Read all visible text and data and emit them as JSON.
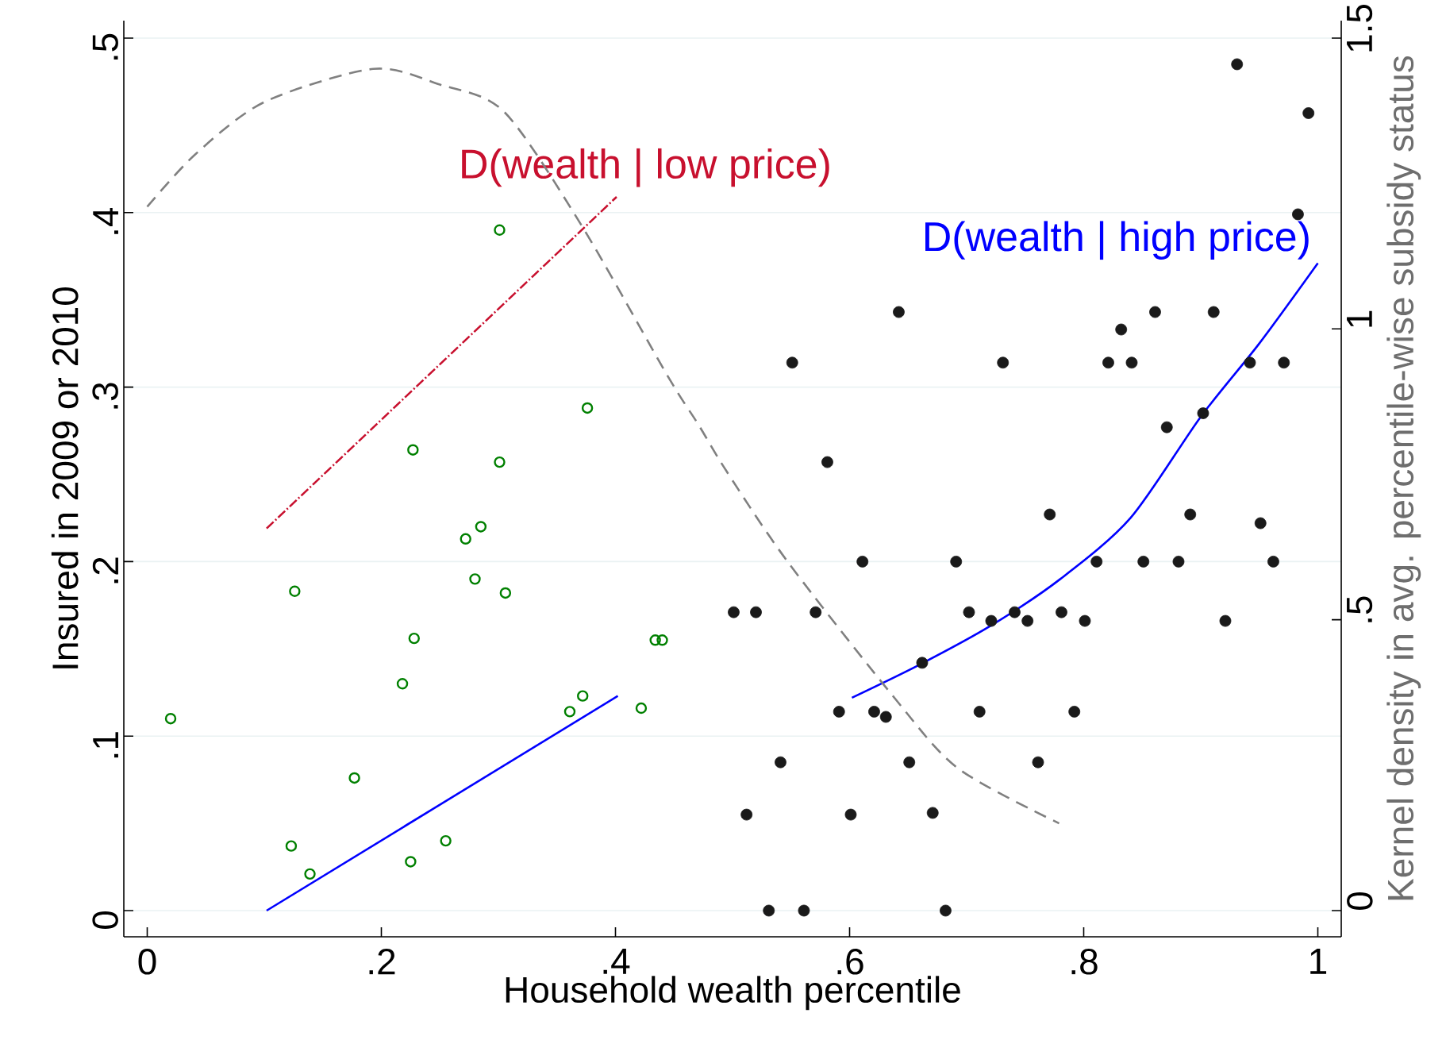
{
  "chart_data": {
    "type": "scatter",
    "xlabel": "Household wealth percentile",
    "ylabel": "Insured in 2009 or 2010",
    "y2label": "Kernel density in avg. percentile-wise subsidy status",
    "xlim": [
      -0.02,
      1.02
    ],
    "ylim": [
      -0.015,
      0.51
    ],
    "y2lim": [
      -0.045,
      1.53
    ],
    "xticks": [
      0,
      {
        "value": 0.2,
        "label": ".2"
      },
      {
        "value": 0.4,
        "label": ".4"
      },
      {
        "value": 0.6,
        "label": ".6"
      },
      {
        "value": 0.8,
        "label": ".8"
      },
      1
    ],
    "yticks": [
      0,
      {
        "value": 0.1,
        "label": ".1"
      },
      {
        "value": 0.2,
        "label": ".2"
      },
      {
        "value": 0.3,
        "label": ".3"
      },
      {
        "value": 0.4,
        "label": ".4"
      },
      {
        "value": 0.5,
        "label": ".5"
      }
    ],
    "y2ticks": [
      0,
      {
        "value": 0.5,
        "label": ".5"
      },
      1,
      1.5
    ],
    "grid": "y",
    "series": [
      {
        "type": "scatter",
        "marker": "circle",
        "color": "#008000",
        "x": [
          0.02,
          0.126,
          0.301,
          0.376,
          0.227,
          0.301,
          0.285,
          0.272,
          0.28,
          0.306,
          0.228,
          0.218,
          0.434,
          0.44,
          0.372,
          0.361,
          0.422,
          0.177,
          0.123,
          0.139,
          0.225,
          0.255
        ],
        "values": [
          0.11,
          0.183,
          0.39,
          0.288,
          0.264,
          0.257,
          0.22,
          0.213,
          0.19,
          0.182,
          0.156,
          0.13,
          0.155,
          0.155,
          0.123,
          0.114,
          0.116,
          0.076,
          0.037,
          0.021,
          0.028,
          0.04
        ]
      },
      {
        "type": "scatter",
        "marker": "dot",
        "color": "#1a1a1a",
        "x": [
          0.931,
          0.992,
          0.983,
          0.642,
          0.861,
          0.911,
          0.832,
          0.551,
          0.731,
          0.821,
          0.841,
          0.942,
          0.971,
          0.902,
          0.871,
          0.581,
          0.771,
          0.891,
          0.951,
          0.611,
          0.691,
          0.811,
          0.851,
          0.881,
          0.962,
          0.501,
          0.52,
          0.571,
          0.702,
          0.741,
          0.781,
          0.721,
          0.752,
          0.801,
          0.921,
          0.662,
          0.591,
          0.621,
          0.631,
          0.711,
          0.792,
          0.541,
          0.651,
          0.761,
          0.512,
          0.601,
          0.671,
          0.531,
          0.561,
          0.682
        ],
        "values": [
          0.485,
          0.457,
          0.399,
          0.343,
          0.343,
          0.343,
          0.333,
          0.314,
          0.314,
          0.314,
          0.314,
          0.314,
          0.314,
          0.285,
          0.277,
          0.257,
          0.227,
          0.227,
          0.222,
          0.2,
          0.2,
          0.2,
          0.2,
          0.2,
          0.2,
          0.171,
          0.171,
          0.171,
          0.171,
          0.171,
          0.171,
          0.166,
          0.166,
          0.166,
          0.166,
          0.142,
          0.114,
          0.114,
          0.111,
          0.114,
          0.114,
          0.085,
          0.085,
          0.085,
          0.055,
          0.055,
          0.056,
          0,
          0,
          0
        ]
      },
      {
        "type": "line",
        "line_style": "solid",
        "color": "#0000ff",
        "x": [
          0.102,
          0.402
        ],
        "values": [
          0,
          0.123
        ]
      },
      {
        "type": "line",
        "line_style": "dashdot",
        "color": "#c8102e",
        "name": "D(wealth | low price)",
        "x": [
          0.102,
          0.401
        ],
        "values": [
          0.219,
          0.409
        ]
      },
      {
        "type": "line",
        "line_style": "solid",
        "color": "#0000ff",
        "name": "D(wealth | high price)",
        "x": [
          0.602,
          0.66,
          0.72,
          0.78,
          0.84,
          0.9,
          0.95,
          1.0
        ],
        "values": [
          0.122,
          0.141,
          0.163,
          0.19,
          0.225,
          0.283,
          0.325,
          0.371
        ]
      },
      {
        "type": "line",
        "axis": "y2",
        "line_style": "dashed",
        "color": "#808080",
        "x": [
          0,
          0.041,
          0.1,
          0.193,
          0.25,
          0.305,
          0.371,
          0.444,
          0.471,
          0.495,
          0.547,
          0.639,
          0.693,
          0.779
        ],
        "values": [
          1.21,
          1.3,
          1.39,
          1.447,
          1.42,
          1.373,
          1.178,
          0.921,
          0.835,
          0.755,
          0.6,
          0.364,
          0.244,
          0.15
        ]
      }
    ]
  }
}
